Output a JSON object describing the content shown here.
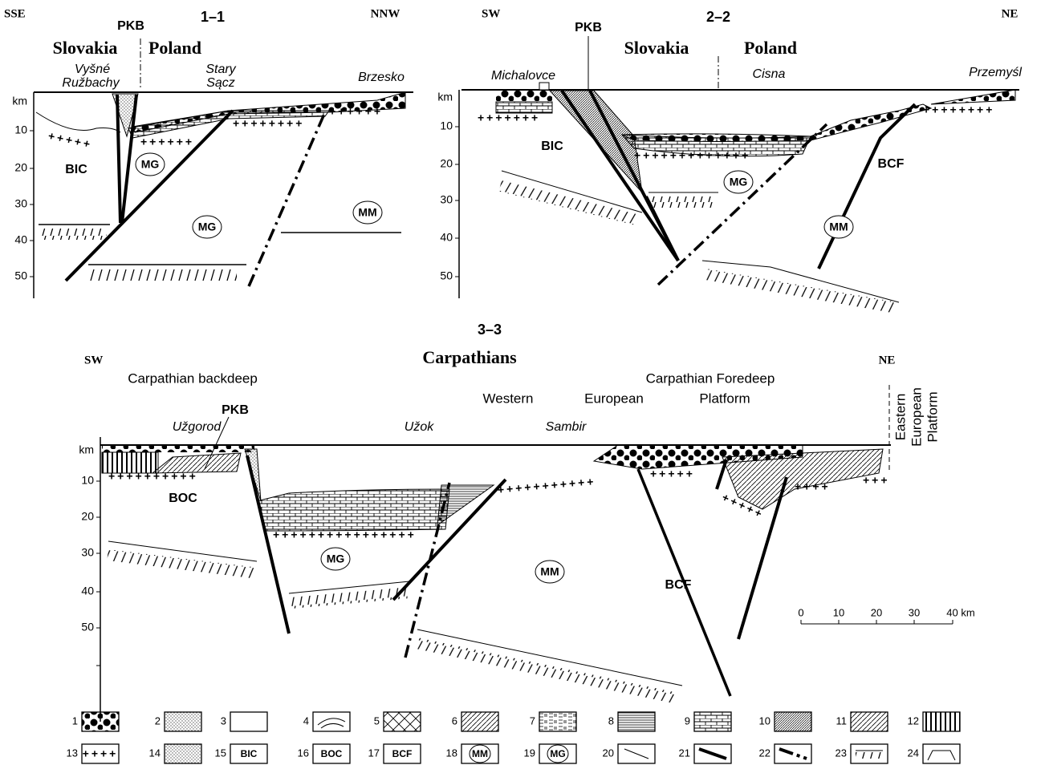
{
  "panels": [
    {
      "title": "1–1",
      "left": "SSE",
      "right": "NNW",
      "depth_unit": "km",
      "depths": [
        10,
        20,
        30,
        40,
        50
      ],
      "labels": [
        "PKB",
        "Slovakia",
        "Poland",
        "Vyšné",
        "Ružbachy",
        "Stary",
        "Sącz",
        "Brzesko",
        "BIC",
        "MG",
        "MG",
        "MM"
      ]
    },
    {
      "title": "2–2",
      "left": "SW",
      "right": "NE",
      "depth_unit": "km",
      "depths": [
        10,
        20,
        30,
        40,
        50
      ],
      "labels": [
        "PKB",
        "Slovakia",
        "Poland",
        "Michalovce",
        "Cisna",
        "Przemyśl",
        "BIC",
        "MG",
        "BCF",
        "MM"
      ]
    },
    {
      "title": "3–3",
      "left": "SW",
      "right": "NE",
      "depth_unit": "km",
      "depths": [
        10,
        20,
        30,
        40,
        50
      ],
      "labels": [
        "Carpathians",
        "Carpathian backdeep",
        "Carpathian Foredeep",
        "Western",
        "European",
        "Platform",
        "Eastern",
        "European",
        "Platform",
        "PKB",
        "Užgorod",
        "Užok",
        "Sambir",
        "BOC",
        "MG",
        "MM",
        "BCF"
      ]
    }
  ],
  "scale_bar": {
    "ticks": [
      "0",
      "10",
      "20",
      "30",
      "40 km"
    ]
  },
  "legend": [
    {
      "number": 1
    },
    {
      "number": 2
    },
    {
      "number": 3
    },
    {
      "number": 4
    },
    {
      "number": 5
    },
    {
      "number": 6
    },
    {
      "number": 7
    },
    {
      "number": 8
    },
    {
      "number": 9
    },
    {
      "number": 10
    },
    {
      "number": 11
    },
    {
      "number": 12
    },
    {
      "number": 13
    },
    {
      "number": 14
    },
    {
      "number": 15,
      "label": "BIC"
    },
    {
      "number": 16,
      "label": "BOC"
    },
    {
      "number": 17,
      "label": "BCF"
    },
    {
      "number": 18,
      "label": "MM"
    },
    {
      "number": 19,
      "label": "MG"
    },
    {
      "number": 20
    },
    {
      "number": 21
    },
    {
      "number": 22
    },
    {
      "number": 23
    },
    {
      "number": 24
    }
  ]
}
